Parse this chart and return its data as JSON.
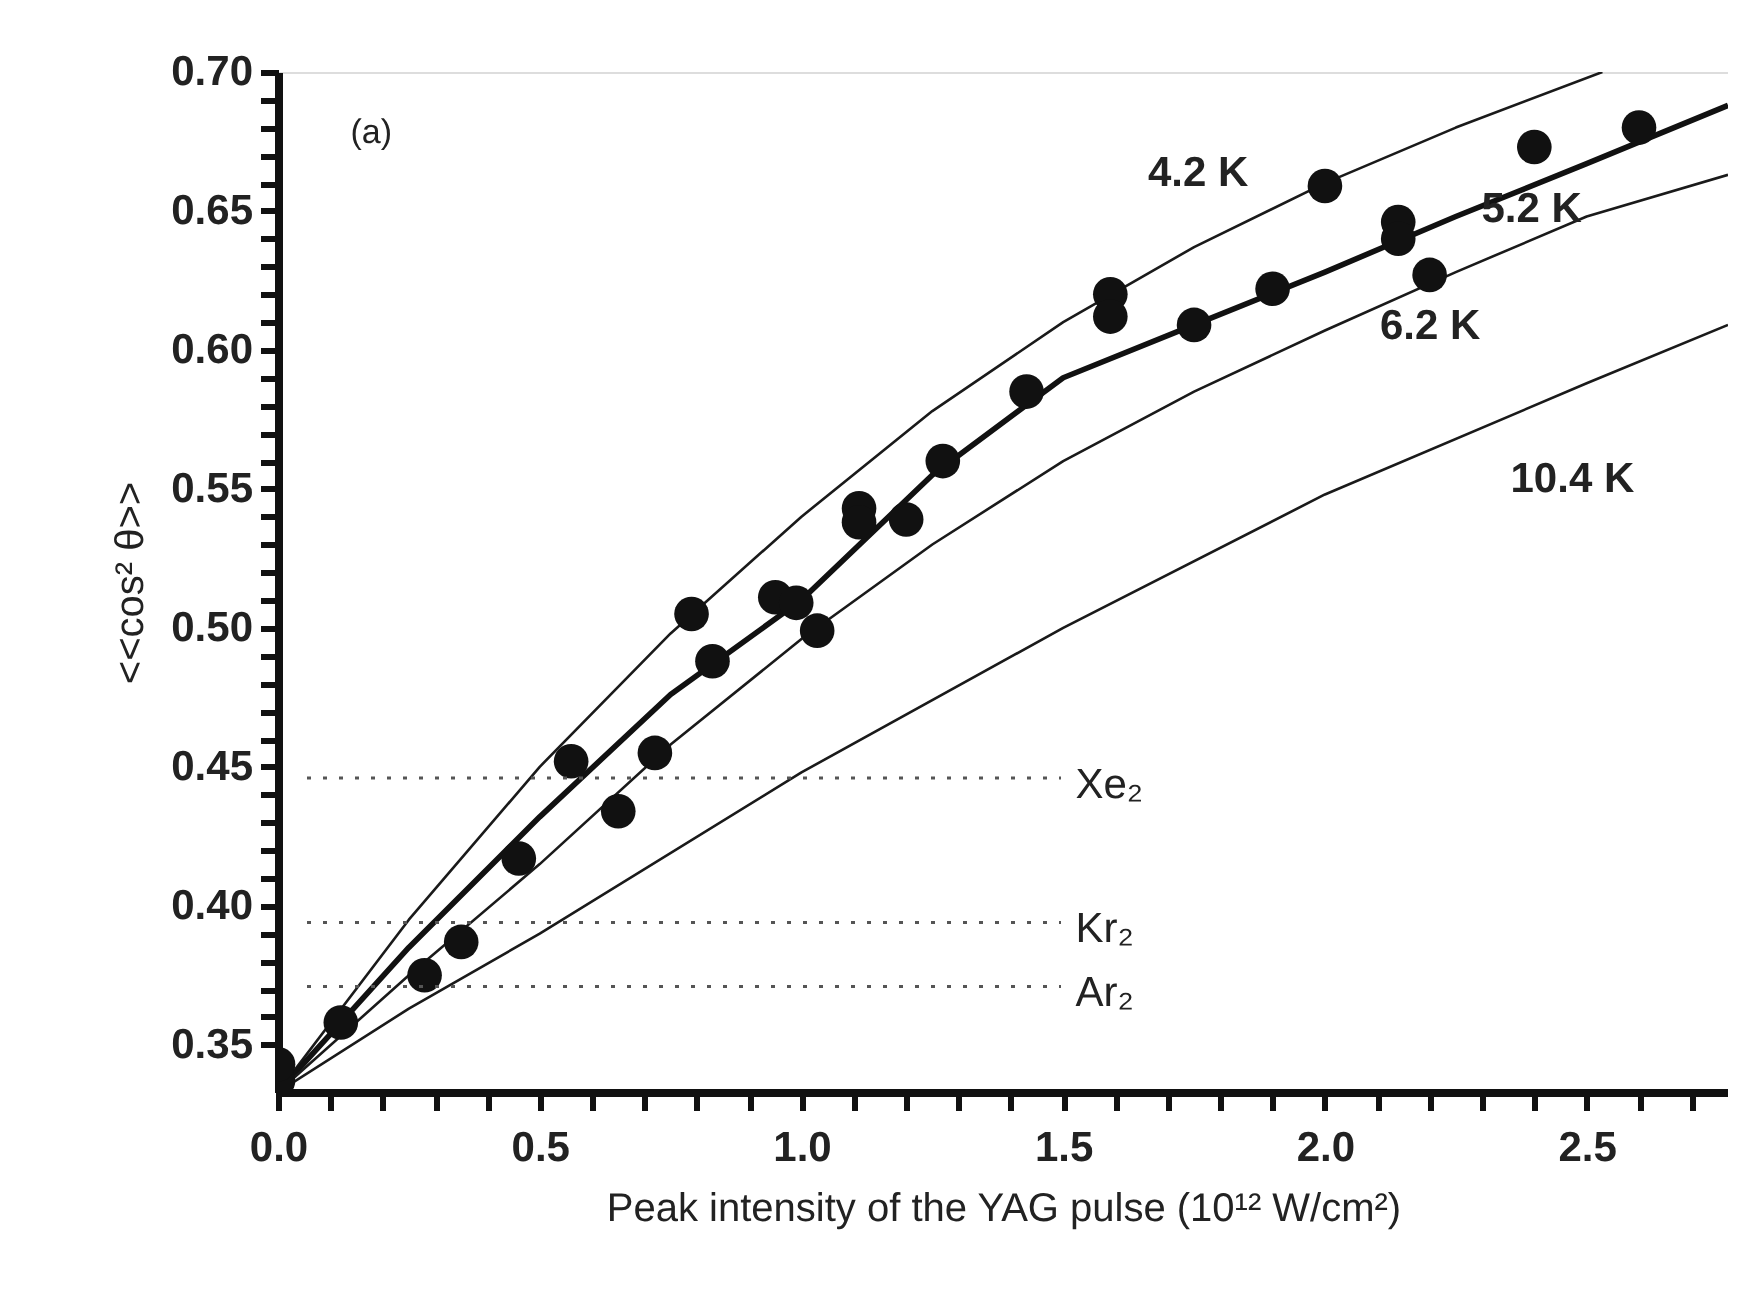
{
  "chart_data": {
    "type": "scatter",
    "xlabel": "Peak intensity of the YAG pulse (10¹² W/cm²)",
    "ylabel": "<<cos² θ>>",
    "xlim": [
      0,
      2.77
    ],
    "ylim": [
      0.333,
      0.7
    ],
    "xticks": [
      {
        "value": 0,
        "label": "0.0"
      },
      {
        "value": 0.1,
        "label": null
      },
      {
        "value": 0.2,
        "label": null
      },
      {
        "value": 0.3,
        "label": null
      },
      {
        "value": 0.4,
        "label": null
      },
      {
        "value": 0.5,
        "label": "0.5"
      },
      {
        "value": 0.6,
        "label": null
      },
      {
        "value": 0.7,
        "label": null
      },
      {
        "value": 0.8,
        "label": null
      },
      {
        "value": 0.9,
        "label": null
      },
      {
        "value": 1.0,
        "label": "1.0"
      },
      {
        "value": 1.1,
        "label": null
      },
      {
        "value": 1.2,
        "label": null
      },
      {
        "value": 1.3,
        "label": null
      },
      {
        "value": 1.4,
        "label": null
      },
      {
        "value": 1.5,
        "label": "1.5"
      },
      {
        "value": 1.6,
        "label": null
      },
      {
        "value": 1.7,
        "label": null
      },
      {
        "value": 1.8,
        "label": null
      },
      {
        "value": 1.9,
        "label": null
      },
      {
        "value": 2.0,
        "label": "2.0"
      },
      {
        "value": 2.1,
        "label": null
      },
      {
        "value": 2.2,
        "label": null
      },
      {
        "value": 2.3,
        "label": null
      },
      {
        "value": 2.4,
        "label": null
      },
      {
        "value": 2.5,
        "label": "2.5"
      },
      {
        "value": 2.6,
        "label": null
      },
      {
        "value": 2.7,
        "label": null
      }
    ],
    "yticks": [
      {
        "value": 0.35,
        "label": "0.35"
      },
      {
        "value": 0.36,
        "label": null
      },
      {
        "value": 0.37,
        "label": null
      },
      {
        "value": 0.38,
        "label": null
      },
      {
        "value": 0.39,
        "label": null
      },
      {
        "value": 0.4,
        "label": "0.40"
      },
      {
        "value": 0.41,
        "label": null
      },
      {
        "value": 0.42,
        "label": null
      },
      {
        "value": 0.43,
        "label": null
      },
      {
        "value": 0.44,
        "label": null
      },
      {
        "value": 0.45,
        "label": "0.45"
      },
      {
        "value": 0.46,
        "label": null
      },
      {
        "value": 0.47,
        "label": null
      },
      {
        "value": 0.48,
        "label": null
      },
      {
        "value": 0.49,
        "label": null
      },
      {
        "value": 0.5,
        "label": "0.50"
      },
      {
        "value": 0.51,
        "label": null
      },
      {
        "value": 0.52,
        "label": null
      },
      {
        "value": 0.53,
        "label": null
      },
      {
        "value": 0.54,
        "label": null
      },
      {
        "value": 0.55,
        "label": "0.55"
      },
      {
        "value": 0.56,
        "label": null
      },
      {
        "value": 0.57,
        "label": null
      },
      {
        "value": 0.58,
        "label": null
      },
      {
        "value": 0.59,
        "label": null
      },
      {
        "value": 0.6,
        "label": "0.60"
      },
      {
        "value": 0.61,
        "label": null
      },
      {
        "value": 0.62,
        "label": null
      },
      {
        "value": 0.63,
        "label": null
      },
      {
        "value": 0.64,
        "label": null
      },
      {
        "value": 0.65,
        "label": "0.65"
      },
      {
        "value": 0.66,
        "label": null
      },
      {
        "value": 0.67,
        "label": null
      },
      {
        "value": 0.68,
        "label": null
      },
      {
        "value": 0.69,
        "label": null
      },
      {
        "value": 0.7,
        "label": "0.70"
      }
    ],
    "grid": false,
    "marker": "circle",
    "series": [
      {
        "type": "line",
        "marker": "none",
        "line_style": "solid",
        "color": "#1a1a1a",
        "x": [
          0,
          0.25,
          0.5,
          0.75,
          1.0,
          1.25,
          1.5,
          1.75,
          2.0,
          2.25,
          2.53
        ],
        "values": [
          0.333,
          0.395,
          0.45,
          0.498,
          0.54,
          0.578,
          0.61,
          0.637,
          0.66,
          0.68,
          0.7
        ]
      },
      {
        "type": "line",
        "marker": "none",
        "line_style": "solid",
        "color": "#111111",
        "x": [
          0,
          0.25,
          0.5,
          0.75,
          1.0,
          1.25,
          1.5,
          1.75,
          2.0,
          2.25,
          2.5,
          2.77
        ],
        "values": [
          0.333,
          0.385,
          0.432,
          0.476,
          0.51,
          0.555,
          0.59,
          0.609,
          0.628,
          0.648,
          0.667,
          0.688
        ]
      },
      {
        "type": "line",
        "marker": "none",
        "line_style": "solid",
        "color": "#1a1a1a",
        "x": [
          0,
          0.25,
          0.5,
          0.75,
          1.0,
          1.25,
          1.5,
          1.75,
          2.0,
          2.25,
          2.5,
          2.77
        ],
        "values": [
          0.333,
          0.375,
          0.415,
          0.458,
          0.496,
          0.53,
          0.56,
          0.585,
          0.607,
          0.628,
          0.648,
          0.663
        ]
      },
      {
        "type": "line",
        "marker": "none",
        "line_style": "solid",
        "color": "#1a1a1a",
        "x": [
          0,
          0.25,
          0.5,
          1.0,
          1.5,
          2.0,
          2.5,
          2.77
        ],
        "values": [
          0.333,
          0.363,
          0.39,
          0.448,
          0.5,
          0.548,
          0.588,
          0.609
        ]
      },
      {
        "color": "#111111",
        "x": [
          0,
          0,
          0.12,
          0.28,
          0.35,
          0.46,
          0.56,
          0.65,
          0.72,
          0.79,
          0.83,
          0.95,
          0.99,
          1.03,
          1.11,
          1.11,
          1.2,
          1.27,
          1.43,
          1.59,
          1.59,
          1.75,
          1.9,
          2.0,
          2.14,
          2.14,
          2.2,
          2.4,
          2.6
        ],
        "values": [
          0.337,
          0.343,
          0.358,
          0.375,
          0.387,
          0.417,
          0.452,
          0.434,
          0.455,
          0.505,
          0.488,
          0.511,
          0.509,
          0.499,
          0.543,
          0.538,
          0.539,
          0.56,
          0.585,
          0.62,
          0.612,
          0.609,
          0.622,
          0.659,
          0.646,
          0.64,
          0.627,
          0.673,
          0.68
        ]
      }
    ],
    "ref_lines": [
      {
        "axis": "y",
        "value": 0.446,
        "label": "Xe₂",
        "color": "#555555",
        "line_style": "dotted"
      },
      {
        "axis": "y",
        "value": 0.394,
        "label": "Kr₂",
        "color": "#555555",
        "line_style": "dotted"
      },
      {
        "axis": "y",
        "value": 0.371,
        "label": "Ar₂",
        "color": "#555555",
        "line_style": "dotted"
      }
    ],
    "annotations": [
      "(a)",
      "4.2 K",
      "5.2 K",
      "6.2 K",
      "10.4 K"
    ]
  }
}
